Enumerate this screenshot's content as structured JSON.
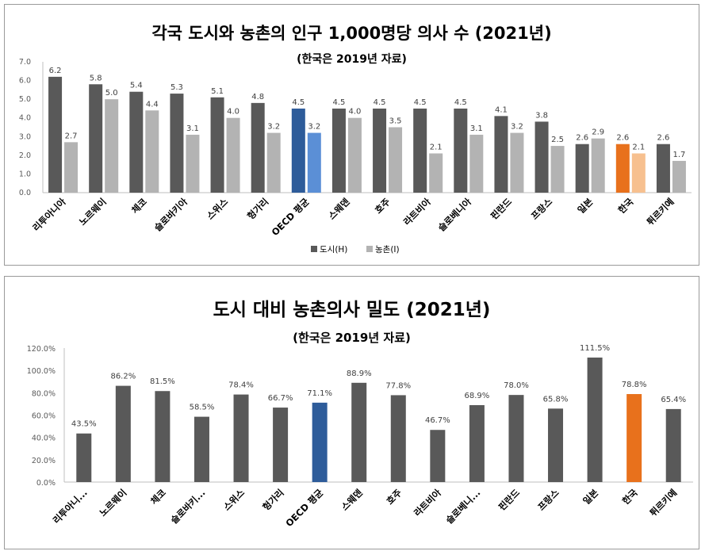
{
  "chart_data": [
    {
      "type": "bar",
      "title": "각국 도시와 농촌의 인구 1,000명당 의사 수 (2021년)",
      "subtitle": "(한국은 2019년 자료)",
      "categories": [
        "리투아니아",
        "노르웨이",
        "체코",
        "슬로바키아",
        "스위스",
        "헝가리",
        "OECD 평균",
        "스웨덴",
        "호주",
        "라트비아",
        "슬로베니아",
        "핀란드",
        "프랑스",
        "일본",
        "한국",
        "튀르키예"
      ],
      "series": [
        {
          "name": "도시(H)",
          "values": [
            6.2,
            5.8,
            5.4,
            5.3,
            5.1,
            4.8,
            4.5,
            4.5,
            4.5,
            4.5,
            4.5,
            4.1,
            3.8,
            2.6,
            2.6,
            2.6
          ]
        },
        {
          "name": "농촌(I)",
          "values": [
            2.7,
            5.0,
            4.4,
            3.1,
            4.0,
            3.2,
            3.2,
            4.0,
            3.5,
            2.1,
            3.1,
            3.2,
            2.5,
            2.9,
            2.1,
            1.7
          ]
        }
      ],
      "ylim": [
        0,
        7
      ],
      "yticks": [
        "0.0",
        "1.0",
        "2.0",
        "3.0",
        "4.0",
        "5.0",
        "6.0",
        "7.0"
      ],
      "value_labels": [
        [
          "6.2",
          "5.8",
          "5.4",
          "5.3",
          "5.1",
          "4.8",
          "4.5",
          "4.5",
          "4.5",
          "4.5",
          "4.5",
          "4.1",
          "3.8",
          "2.6",
          "2.6",
          "2.6"
        ],
        [
          "2.7",
          "5.0",
          "4.4",
          "3.1",
          "4.0",
          "3.2",
          "3.2",
          "4.0",
          "3.5",
          "2.1",
          "3.1",
          "3.2",
          "2.5",
          "2.9",
          "2.1",
          "1.7"
        ]
      ],
      "colors": {
        "urban": "#595959",
        "rural": "#b3b3b3",
        "oecd_urban": "#2e5c9a",
        "oecd_rural": "#5b8fd6",
        "korea_urban": "#e8711c",
        "korea_rural": "#f7c08f"
      },
      "grid": false,
      "legend": "bottom"
    },
    {
      "type": "bar",
      "title": "도시 대비 농촌의사 밀도 (2021년)",
      "subtitle": "(한국은 2019년 자료)",
      "categories": [
        "리투아니...",
        "노르웨이",
        "체코",
        "슬로바키...",
        "스위스",
        "헝가리",
        "OECD 평균",
        "스웨덴",
        "호주",
        "라트비아",
        "슬로베니...",
        "핀란드",
        "프랑스",
        "일본",
        "한국",
        "튀르키예"
      ],
      "values": [
        43.5,
        86.2,
        81.5,
        58.5,
        78.4,
        66.7,
        71.1,
        88.9,
        77.8,
        46.7,
        68.9,
        78.0,
        65.8,
        111.5,
        78.8,
        65.4
      ],
      "value_labels": [
        "43.5%",
        "86.2%",
        "81.5%",
        "58.5%",
        "78.4%",
        "66.7%",
        "71.1%",
        "88.9%",
        "77.8%",
        "46.7%",
        "68.9%",
        "78.0%",
        "65.8%",
        "111.5%",
        "78.8%",
        "65.4%"
      ],
      "ylim": [
        0,
        120
      ],
      "yticks": [
        "0.0%",
        "20.0%",
        "40.0%",
        "60.0%",
        "80.0%",
        "100.0%",
        "120.0%"
      ],
      "colors": {
        "default": "#595959",
        "oecd": "#2e5c9a",
        "korea": "#e8711c"
      },
      "grid": false
    }
  ]
}
